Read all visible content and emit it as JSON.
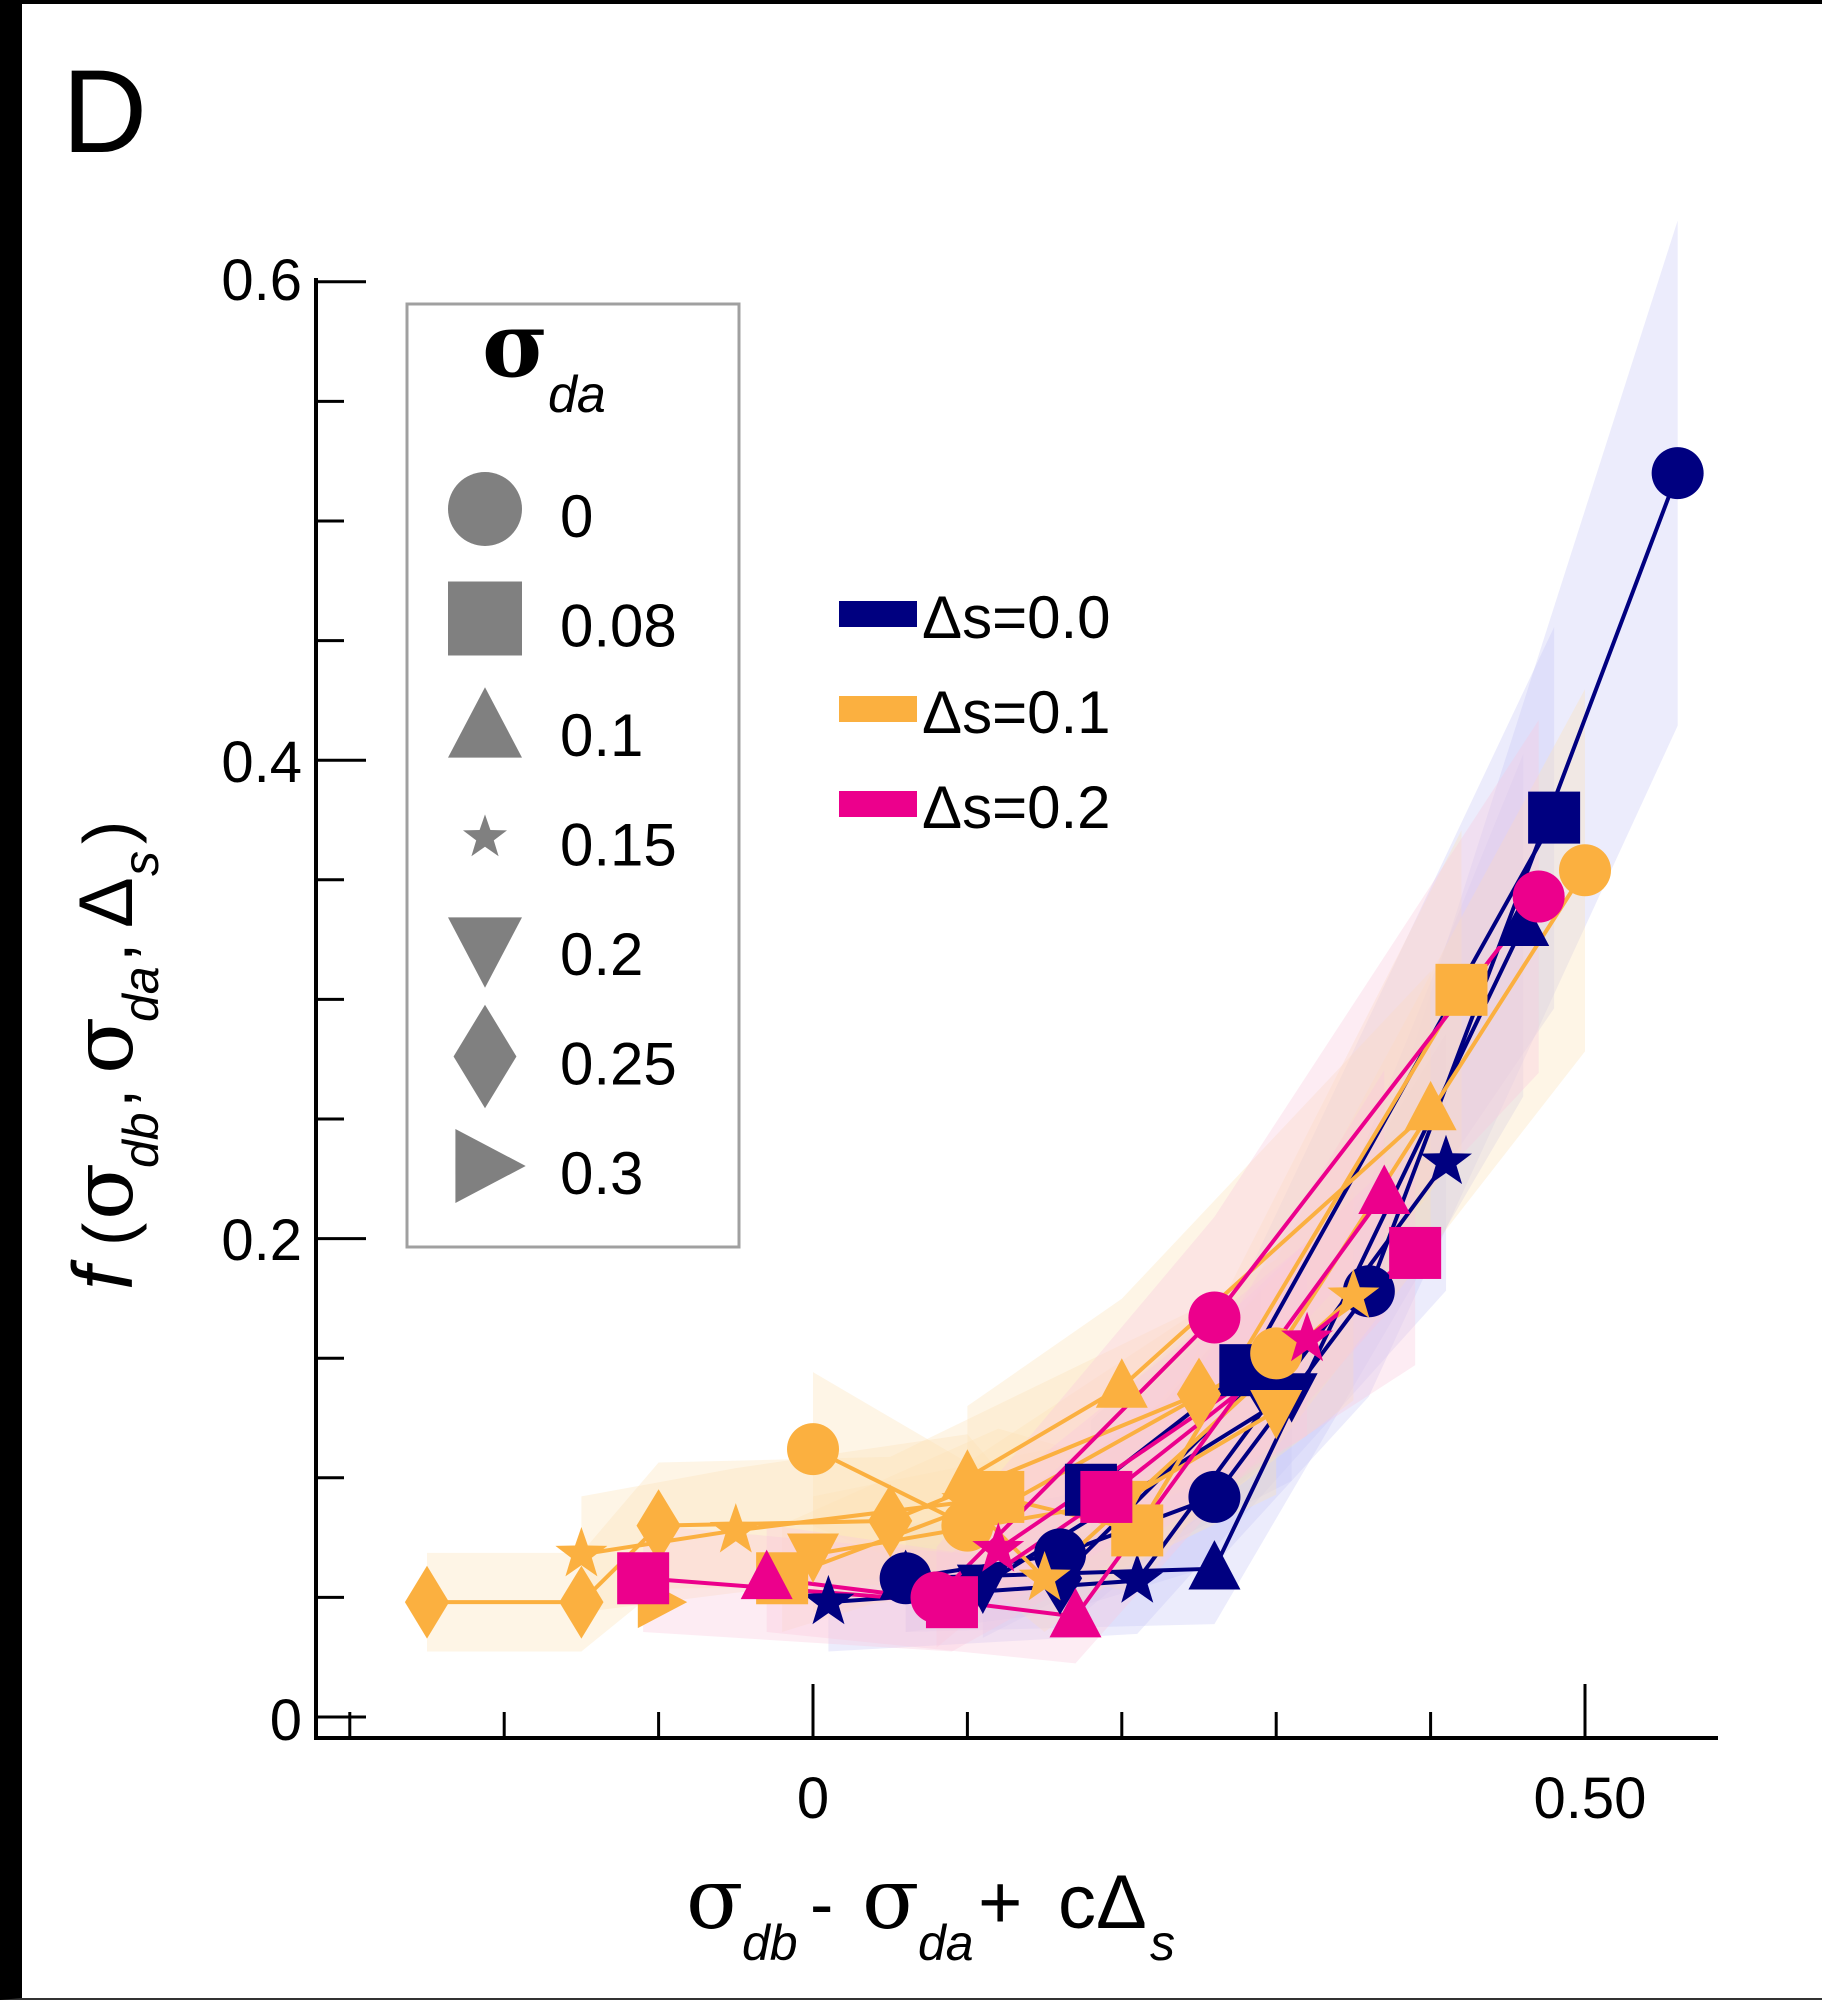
{
  "panel_label": "D",
  "chart_data": {
    "type": "scatter",
    "title": "",
    "xlabel": "σ_db - σ_da + cΔ_s",
    "ylabel": "f(σ_db, σ_da, Δ_s)",
    "xlim": [
      -0.3,
      0.56
    ],
    "ylim": [
      0,
      0.6
    ],
    "x_major_ticks": [
      0,
      0.5
    ],
    "x_tick_labels": [
      "0",
      "0.50"
    ],
    "x_minor_ticks": [
      -0.3,
      -0.2,
      -0.1,
      0.1,
      0.2,
      0.3,
      0.4
    ],
    "y_major_ticks": [
      0,
      0.2,
      0.4,
      0.6
    ],
    "y_tick_labels": [
      "0",
      "0.2",
      "0.4",
      "0.6"
    ],
    "y_minor_ticks": [
      0.05,
      0.1,
      0.15,
      0.25,
      0.3,
      0.35,
      0.45,
      0.5,
      0.55
    ],
    "grid": false,
    "marker_legend": {
      "title": "σ",
      "title_sub": "da",
      "placement": "upper-left",
      "entries": [
        {
          "marker": "circle",
          "label": "0"
        },
        {
          "marker": "square",
          "label": "0.08"
        },
        {
          "marker": "triangle-up",
          "label": "0.1"
        },
        {
          "marker": "star",
          "label": "0.15"
        },
        {
          "marker": "triangle-down",
          "label": "0.2"
        },
        {
          "marker": "diamond",
          "label": "0.25"
        },
        {
          "marker": "triangle-right",
          "label": "0.3"
        }
      ]
    },
    "color_legend": {
      "placement": "upper-center",
      "entries": [
        {
          "label": "Δs=0.0",
          "color": "#000080"
        },
        {
          "label": "Δs=0.1",
          "color": "#FBB040"
        },
        {
          "label": "Δs=0.2",
          "color": "#EC008C"
        }
      ]
    },
    "series": [
      {
        "name": "Δs=0.0",
        "color": "#000080",
        "band_color": "#C8C8F5",
        "points": [
          {
            "sigma_da": "0",
            "marker": "circle",
            "x": 0.06,
            "y": 0.058
          },
          {
            "sigma_da": "0",
            "marker": "circle",
            "x": 0.16,
            "y": 0.068
          },
          {
            "sigma_da": "0",
            "marker": "circle",
            "x": 0.26,
            "y": 0.092
          },
          {
            "sigma_da": "0",
            "marker": "circle",
            "x": 0.36,
            "y": 0.178
          },
          {
            "sigma_da": "0",
            "marker": "circle",
            "x": 0.56,
            "y": 0.52
          },
          {
            "sigma_da": "0.08",
            "marker": "square",
            "x": 0.18,
            "y": 0.095
          },
          {
            "sigma_da": "0.08",
            "marker": "square",
            "x": 0.28,
            "y": 0.145
          },
          {
            "sigma_da": "0.08",
            "marker": "square",
            "x": 0.48,
            "y": 0.376
          },
          {
            "sigma_da": "0.1",
            "marker": "triangle-up",
            "x": 0.06,
            "y": 0.058
          },
          {
            "sigma_da": "0.1",
            "marker": "triangle-up",
            "x": 0.26,
            "y": 0.062
          },
          {
            "sigma_da": "0.1",
            "marker": "triangle-up",
            "x": 0.46,
            "y": 0.331
          },
          {
            "sigma_da": "0.15",
            "marker": "star",
            "x": 0.01,
            "y": 0.048
          },
          {
            "sigma_da": "0.15",
            "marker": "star",
            "x": 0.21,
            "y": 0.057
          },
          {
            "sigma_da": "0.15",
            "marker": "star",
            "x": 0.41,
            "y": 0.232
          },
          {
            "sigma_da": "0.2",
            "marker": "triangle-down",
            "x": 0.11,
            "y": 0.055
          },
          {
            "sigma_da": "0.2",
            "marker": "triangle-down",
            "x": 0.31,
            "y": 0.135
          },
          {
            "sigma_da": "0.25",
            "marker": "diamond",
            "x": 0.16,
            "y": 0.058
          },
          {
            "sigma_da": "0.25",
            "marker": "diamond",
            "x": 0.29,
            "y": 0.142
          }
        ]
      },
      {
        "name": "Δs=0.1",
        "color": "#FBB040",
        "band_color": "#FDE3B8",
        "points": [
          {
            "sigma_da": "0",
            "marker": "circle",
            "x": 0.0,
            "y": 0.112
          },
          {
            "sigma_da": "0",
            "marker": "circle",
            "x": 0.1,
            "y": 0.08
          },
          {
            "sigma_da": "0",
            "marker": "circle",
            "x": 0.3,
            "y": 0.152
          },
          {
            "sigma_da": "0",
            "marker": "circle",
            "x": 0.5,
            "y": 0.354
          },
          {
            "sigma_da": "0.08",
            "marker": "square",
            "x": -0.02,
            "y": 0.058
          },
          {
            "sigma_da": "0.08",
            "marker": "square",
            "x": 0.12,
            "y": 0.092
          },
          {
            "sigma_da": "0.08",
            "marker": "square",
            "x": 0.21,
            "y": 0.078
          },
          {
            "sigma_da": "0.08",
            "marker": "square",
            "x": 0.42,
            "y": 0.304
          },
          {
            "sigma_da": "0.1",
            "marker": "triangle-up",
            "x": 0.1,
            "y": 0.1
          },
          {
            "sigma_da": "0.1",
            "marker": "triangle-up",
            "x": 0.2,
            "y": 0.138
          },
          {
            "sigma_da": "0.1",
            "marker": "triangle-up",
            "x": 0.4,
            "y": 0.254
          },
          {
            "sigma_da": "0.15",
            "marker": "star",
            "x": -0.15,
            "y": 0.068
          },
          {
            "sigma_da": "0.15",
            "marker": "star",
            "x": -0.05,
            "y": 0.078
          },
          {
            "sigma_da": "0.15",
            "marker": "star",
            "x": 0.1,
            "y": 0.09
          },
          {
            "sigma_da": "0.15",
            "marker": "star",
            "x": 0.15,
            "y": 0.058
          },
          {
            "sigma_da": "0.15",
            "marker": "star",
            "x": 0.35,
            "y": 0.176
          },
          {
            "sigma_da": "0.2",
            "marker": "triangle-down",
            "x": 0.0,
            "y": 0.068
          },
          {
            "sigma_da": "0.2",
            "marker": "triangle-down",
            "x": 0.2,
            "y": 0.09
          },
          {
            "sigma_da": "0.2",
            "marker": "triangle-down",
            "x": 0.3,
            "y": 0.128
          },
          {
            "sigma_da": "0.25",
            "marker": "diamond",
            "x": -0.25,
            "y": 0.048
          },
          {
            "sigma_da": "0.25",
            "marker": "diamond",
            "x": -0.15,
            "y": 0.048
          },
          {
            "sigma_da": "0.25",
            "marker": "diamond",
            "x": -0.1,
            "y": 0.08
          },
          {
            "sigma_da": "0.25",
            "marker": "diamond",
            "x": 0.05,
            "y": 0.082
          },
          {
            "sigma_da": "0.25",
            "marker": "diamond",
            "x": 0.25,
            "y": 0.135
          },
          {
            "sigma_da": "0.3",
            "marker": "triangle-right",
            "x": -0.1,
            "y": 0.048
          }
        ]
      },
      {
        "name": "Δs=0.2",
        "color": "#EC008C",
        "band_color": "#F9C8DC",
        "points": [
          {
            "sigma_da": "0",
            "marker": "circle",
            "x": 0.08,
            "y": 0.05
          },
          {
            "sigma_da": "0",
            "marker": "circle",
            "x": 0.26,
            "y": 0.167
          },
          {
            "sigma_da": "0",
            "marker": "circle",
            "x": 0.47,
            "y": 0.343
          },
          {
            "sigma_da": "0.08",
            "marker": "square",
            "x": -0.11,
            "y": 0.058
          },
          {
            "sigma_da": "0.08",
            "marker": "square",
            "x": 0.09,
            "y": 0.048
          },
          {
            "sigma_da": "0.08",
            "marker": "square",
            "x": 0.19,
            "y": 0.092
          },
          {
            "sigma_da": "0.08",
            "marker": "square",
            "x": 0.39,
            "y": 0.194
          },
          {
            "sigma_da": "0.1",
            "marker": "triangle-up",
            "x": -0.03,
            "y": 0.058
          },
          {
            "sigma_da": "0.1",
            "marker": "triangle-up",
            "x": 0.17,
            "y": 0.042
          },
          {
            "sigma_da": "0.1",
            "marker": "triangle-up",
            "x": 0.37,
            "y": 0.219
          },
          {
            "sigma_da": "0.15",
            "marker": "star",
            "x": 0.12,
            "y": 0.07
          },
          {
            "sigma_da": "0.15",
            "marker": "star",
            "x": 0.32,
            "y": 0.158
          }
        ]
      }
    ]
  }
}
